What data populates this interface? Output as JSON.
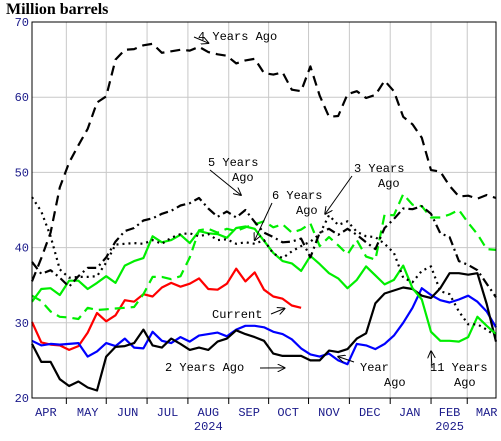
{
  "chart_data": {
    "type": "line",
    "title": "Million barrels",
    "xlabel": "",
    "ylabel": "",
    "ylim": [
      20,
      70
    ],
    "yticks": [
      20,
      30,
      40,
      50,
      60,
      70
    ],
    "xlim": [
      0,
      50
    ],
    "month_labels": [
      {
        "label": "APR",
        "x": 1.5
      },
      {
        "label": "MAY",
        "x": 6.0
      },
      {
        "label": "JUN",
        "x": 10.3
      },
      {
        "label": "JUL",
        "x": 14.6
      },
      {
        "label": "AUG",
        "x": 19.0
      },
      {
        "label": "SEP",
        "x": 23.4
      },
      {
        "label": "OCT",
        "x": 27.6
      },
      {
        "label": "NOV",
        "x": 32.0
      },
      {
        "label": "DEC",
        "x": 36.4
      },
      {
        "label": "JAN",
        "x": 40.7
      },
      {
        "label": "FEB",
        "x": 45.0
      },
      {
        "label": "MAR",
        "x": 49.0
      }
    ],
    "month_ticks": [
      3.7,
      8.0,
      12.4,
      16.8,
      21.2,
      25.5,
      29.8,
      34.2,
      38.6,
      43.0,
      46.9
    ],
    "year_labels": [
      {
        "label": "2024",
        "x": 19.0
      },
      {
        "label": "2025",
        "x": 45.0
      }
    ],
    "grid": true,
    "legend": "none",
    "series": [
      {
        "name": "Current",
        "color": "#ff0000",
        "dash": "solid",
        "x": [
          0,
          1,
          2,
          3,
          4,
          5,
          6,
          7,
          8,
          9,
          10,
          11,
          12,
          13,
          14,
          15,
          16,
          17,
          18,
          19,
          20,
          21,
          22,
          23,
          24,
          25,
          26,
          27,
          28,
          29
        ],
        "y": [
          30.1,
          27.4,
          27.1,
          27.0,
          26.4,
          26.9,
          28.7,
          31.3,
          30.2,
          31.0,
          33.0,
          32.8,
          33.8,
          33.5,
          34.7,
          35.3,
          34.8,
          35.2,
          35.9,
          34.5,
          34.4,
          35.2,
          37.2,
          35.5,
          36.7,
          34.4,
          33.5,
          33.2,
          32.3,
          32.0
        ]
      },
      {
        "name": "Year Ago",
        "color": "#0000ff",
        "dash": "solid",
        "x": [
          0,
          1,
          2,
          3,
          4,
          5,
          6,
          7,
          8,
          9,
          10,
          11,
          12,
          13,
          14,
          15,
          16,
          17,
          18,
          19,
          20,
          21,
          22,
          23,
          24,
          25,
          26,
          27,
          28,
          29,
          30,
          31,
          32,
          33,
          34,
          35,
          36,
          37,
          38,
          39,
          40,
          41,
          42,
          43,
          44,
          45,
          46,
          47,
          48,
          49,
          50
        ],
        "y": [
          27.6,
          27.0,
          27.2,
          27.1,
          27.2,
          27.3,
          25.5,
          26.2,
          27.3,
          26.9,
          27.9,
          26.7,
          26.6,
          28.8,
          27.6,
          27.3,
          28.1,
          27.5,
          28.3,
          28.5,
          28.7,
          28.2,
          29.1,
          29.6,
          29.6,
          29.4,
          28.8,
          28.5,
          27.8,
          26.6,
          25.8,
          25.5,
          25.9,
          25.0,
          24.5,
          27.2,
          27.0,
          26.5,
          27.2,
          28.3,
          30.0,
          32.0,
          34.6,
          33.7,
          33.0,
          32.7,
          33.1,
          33.6,
          32.8,
          31.5,
          29.4
        ]
      },
      {
        "name": "2 Years Ago",
        "color": "#000000",
        "dash": "solid",
        "x": [
          0,
          1,
          2,
          3,
          4,
          5,
          6,
          7,
          8,
          9,
          10,
          11,
          12,
          13,
          14,
          15,
          16,
          17,
          18,
          19,
          20,
          21,
          22,
          23,
          24,
          25,
          26,
          27,
          28,
          29,
          30,
          31,
          32,
          33,
          34,
          35,
          36,
          37,
          38,
          39,
          40,
          41,
          42,
          43,
          44,
          45,
          46,
          47,
          48,
          49,
          50
        ],
        "y": [
          27.2,
          24.8,
          24.8,
          22.5,
          21.6,
          22.2,
          21.4,
          21.0,
          25.5,
          26.8,
          26.9,
          27.3,
          29.1,
          27.0,
          26.7,
          27.9,
          27.2,
          26.4,
          26.7,
          26.4,
          27.5,
          27.9,
          29.0,
          28.5,
          28.1,
          27.6,
          25.9,
          25.6,
          25.6,
          25.6,
          25.0,
          25.0,
          26.3,
          26.1,
          26.5,
          27.9,
          28.6,
          32.6,
          33.9,
          34.3,
          34.7,
          34.5,
          33.6,
          33.3,
          34.6,
          36.6,
          36.6,
          36.4,
          36.6,
          32.5,
          27.5
        ]
      },
      {
        "name": "3 Years Ago",
        "color": "#00ee00",
        "dash": "solid",
        "x": [
          0,
          1,
          2,
          3,
          4,
          5,
          6,
          7,
          8,
          9,
          10,
          11,
          12,
          13,
          14,
          15,
          16,
          17,
          18,
          19,
          20,
          21,
          22,
          23,
          24,
          25,
          26,
          27,
          28,
          29,
          30,
          31,
          32,
          33,
          34,
          35,
          36,
          37,
          38,
          39,
          40,
          41,
          42,
          43,
          44,
          45,
          46,
          47,
          48,
          49,
          50
        ],
        "y": [
          32.8,
          34.5,
          34.6,
          33.7,
          35.6,
          35.6,
          34.5,
          35.3,
          36.2,
          35.3,
          37.6,
          38.2,
          38.6,
          41.5,
          40.7,
          41.0,
          41.7,
          40.6,
          42.2,
          41.9,
          41.8,
          41.3,
          42.6,
          42.8,
          42.5,
          40.9,
          39.3,
          38.2,
          37.9,
          36.9,
          38.9,
          37.8,
          36.6,
          35.9,
          34.6,
          35.7,
          37.5,
          36.3,
          35.1,
          35.7,
          37.6,
          34.6,
          33.1,
          28.8,
          27.6,
          27.6,
          27.5,
          28.1,
          30.8,
          29.6,
          28.5
        ]
      },
      {
        "name": "4 Years Ago",
        "color": "#000000",
        "dash": "long",
        "x": [
          0,
          1,
          2,
          3,
          4,
          5,
          6,
          7,
          8,
          9,
          10,
          11,
          12,
          13,
          14,
          15,
          16,
          17,
          18,
          19,
          20,
          21,
          22,
          23,
          24,
          25,
          26,
          27,
          28,
          29,
          30,
          31,
          32,
          33,
          34,
          35,
          36,
          37,
          38,
          39,
          40,
          41,
          42,
          43,
          44,
          45,
          46,
          47,
          48,
          49,
          50
        ],
        "y": [
          35.5,
          38.6,
          42.0,
          48.0,
          51.3,
          53.6,
          55.8,
          59.3,
          60.1,
          65.0,
          66.3,
          66.4,
          66.9,
          67.1,
          65.9,
          66.1,
          66.3,
          66.2,
          66.7,
          66.0,
          65.7,
          65.5,
          64.5,
          64.9,
          65.1,
          63.2,
          63.0,
          63.3,
          61.0,
          60.8,
          64.1,
          60.2,
          57.4,
          57.5,
          60.4,
          60.8,
          59.9,
          60.3,
          62.2,
          60.8,
          57.4,
          56.4,
          54.6,
          50.3,
          50.1,
          48.2,
          46.8,
          46.9,
          46.5,
          47.0,
          46.6
        ]
      },
      {
        "name": "5 Years Ago",
        "color": "#000000",
        "dash": "dot",
        "x": [
          0,
          1,
          2,
          3,
          4,
          5,
          6,
          7,
          8,
          9,
          10,
          11,
          12,
          13,
          14,
          15,
          16,
          17,
          18,
          19,
          20,
          21,
          22,
          23,
          24,
          25,
          26,
          27,
          28,
          29,
          30,
          31,
          32,
          33,
          34,
          35,
          36,
          37,
          38,
          39,
          40,
          41,
          42,
          43,
          44,
          45,
          46,
          47,
          48,
          49,
          50
        ],
        "y": [
          46.7,
          44.8,
          41.5,
          37.1,
          36.0,
          36.1,
          36.1,
          36.2,
          38.0,
          40.4,
          40.5,
          40.6,
          40.5,
          41.0,
          40.5,
          41.3,
          41.8,
          41.9,
          41.5,
          41.8,
          41.0,
          41.1,
          40.5,
          40.7,
          40.5,
          41.0,
          39.2,
          38.6,
          39.5,
          40.2,
          40.8,
          41.8,
          44.3,
          43.0,
          43.5,
          42.1,
          41.5,
          41.4,
          40.5,
          39.3,
          36.0,
          35.4,
          36.9,
          37.5,
          34.2,
          33.8,
          31.5,
          29.8,
          29.8,
          29.1,
          28.2
        ]
      },
      {
        "name": "6 Years Ago",
        "color": "#00ee00",
        "dash": "long",
        "x": [
          0,
          1,
          2,
          3,
          4,
          5,
          6,
          7,
          8,
          9,
          10,
          11,
          12,
          13,
          14,
          15,
          16,
          17,
          18,
          19,
          20,
          21,
          22,
          23,
          24,
          25,
          26,
          27,
          28,
          29,
          30,
          31,
          32,
          33,
          34,
          35,
          36,
          37,
          38,
          39,
          40,
          41,
          42,
          43,
          44,
          45,
          46,
          47,
          48,
          49,
          50
        ],
        "y": [
          33.6,
          32.9,
          31.5,
          30.8,
          30.7,
          30.5,
          32.0,
          31.7,
          31.8,
          31.9,
          32.0,
          32.1,
          33.8,
          36.1,
          36.1,
          35.8,
          36.2,
          38.7,
          42.3,
          42.5,
          42.0,
          42.5,
          42.2,
          42.7,
          43.1,
          43.5,
          42.7,
          43.1,
          42.0,
          42.4,
          43.2,
          40.2,
          41.4,
          40.3,
          39.1,
          41.0,
          38.8,
          38.4,
          44.4,
          44.3,
          47.1,
          45.7,
          45.5,
          44.0,
          44.0,
          44.4,
          45.0,
          43.3,
          41.8,
          39.8,
          39.7
        ]
      },
      {
        "name": "11 Years Ago",
        "color": "#000000",
        "dash": "dashdot",
        "x": [
          0,
          1,
          2,
          3,
          4,
          5,
          6,
          7,
          8,
          9,
          10,
          11,
          12,
          13,
          14,
          15,
          16,
          17,
          18,
          19,
          20,
          21,
          22,
          23,
          24,
          25,
          26,
          27,
          28,
          29,
          30,
          31,
          32,
          33,
          34,
          35,
          36,
          37,
          38,
          39,
          40,
          41,
          42,
          43,
          44,
          45,
          46,
          47,
          48,
          49,
          50
        ],
        "y": [
          38.1,
          36.5,
          37.0,
          36.0,
          34.8,
          36.2,
          37.3,
          37.3,
          38.7,
          40.8,
          42.2,
          42.6,
          43.6,
          43.9,
          44.5,
          44.9,
          45.6,
          45.9,
          46.6,
          45.2,
          44.1,
          44.8,
          44.0,
          45.0,
          43.4,
          42.0,
          41.4,
          40.7,
          40.8,
          41.2,
          38.7,
          42.0,
          42.5,
          41.7,
          42.5,
          41.7,
          40.7,
          39.8,
          42.6,
          43.8,
          45.2,
          45.1,
          45.5,
          44.5,
          41.9,
          41.4,
          38.2,
          37.7,
          37.0,
          35.2,
          33.4
        ]
      }
    ],
    "annotations": [
      {
        "id": "anno-4-years-ago",
        "series": "4 Years Ago",
        "text": [
          "4 Years Ago"
        ],
        "arrow_to": [
          19,
          67.2
        ]
      },
      {
        "id": "anno-5-years-ago",
        "series": "5 Years Ago",
        "text": [
          "5 Years",
          "Ago"
        ],
        "arrow_to": [
          22.5,
          47.0
        ]
      },
      {
        "id": "anno-3-years-ago",
        "series": "3 Years Ago",
        "text": [
          "3 Years",
          "Ago"
        ],
        "arrow_to": [
          31.6,
          44.5
        ]
      },
      {
        "id": "anno-6-years-ago",
        "series": "6 Years Ago",
        "text": [
          "6 Years",
          "Ago"
        ],
        "arrow_to": [
          24.0,
          41.0
        ]
      },
      {
        "id": "anno-current",
        "series": "Current",
        "text": [
          "Current"
        ],
        "arrow_to": [
          27.2,
          31.9
        ]
      },
      {
        "id": "anno-2-years-ago",
        "series": "2 Years Ago",
        "text": [
          "2 Years Ago"
        ],
        "arrow_to": [
          27.2,
          24.0
        ]
      },
      {
        "id": "anno-year-ago",
        "series": "Year Ago",
        "text": [
          "Year",
          "Ago"
        ],
        "arrow_to": [
          33.0,
          25.5
        ]
      },
      {
        "id": "anno-11-years-ago",
        "series": "11 Years Ago",
        "text": [
          "11 Years",
          "Ago"
        ],
        "arrow_to": [
          43.0,
          26.2
        ]
      }
    ]
  }
}
